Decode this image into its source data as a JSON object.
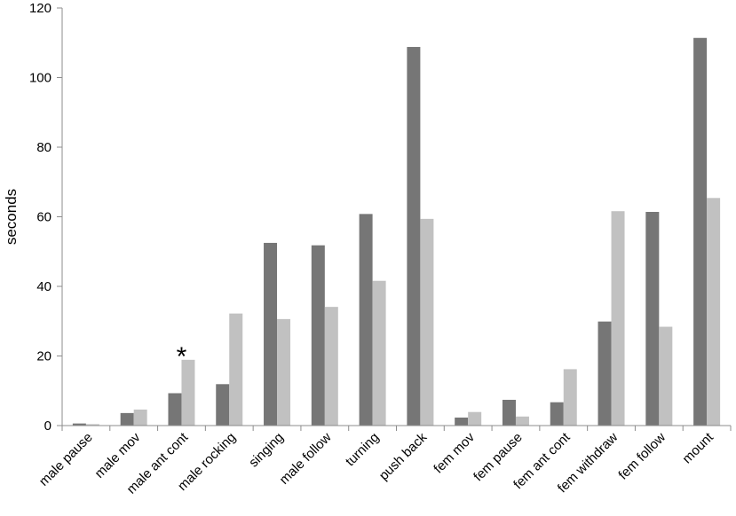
{
  "chart_data": {
    "type": "bar",
    "title": "",
    "xlabel": "",
    "ylabel": "seconds",
    "ylim": [
      0,
      120
    ],
    "yticks": [
      0,
      20,
      40,
      60,
      80,
      100,
      120
    ],
    "grid": false,
    "legend": "none",
    "categories": [
      "male pause",
      "male mov",
      "male ant cont",
      "male rocking",
      "singing",
      "male follow",
      "turning",
      "push back",
      "fem mov",
      "fem pause",
      "fem ant cont",
      "fem withdraw",
      "fem follow",
      "mount"
    ],
    "series": [
      {
        "color": "#767676",
        "values": [
          0.6,
          3.6,
          9.3,
          11.9,
          52.5,
          51.8,
          60.8,
          108.8,
          2.3,
          7.4,
          6.7,
          29.9,
          61.4,
          111.4
        ]
      },
      {
        "color": "#c1c1c1",
        "values": [
          0.4,
          4.6,
          18.9,
          32.2,
          30.6,
          34.1,
          41.6,
          59.4,
          3.9,
          2.6,
          16.2,
          61.6,
          28.4,
          65.4
        ]
      }
    ],
    "annotations": [
      {
        "text": "*",
        "category": "male ant cont"
      }
    ]
  }
}
